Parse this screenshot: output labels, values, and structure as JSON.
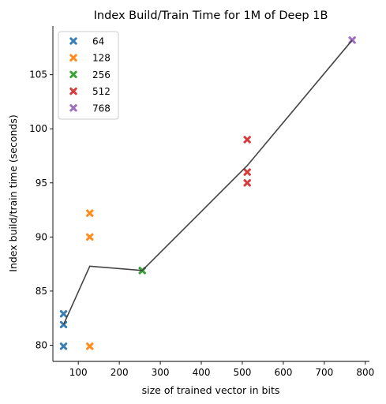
{
  "chart_data": {
    "type": "scatter",
    "title": "Index Build/Train Time for 1M of Deep 1B",
    "xlabel": "size of trained vector in bits",
    "ylabel": "Index build/train time (seconds)",
    "xlim": [
      38,
      810
    ],
    "ylim": [
      78.5,
      109.5
    ],
    "xticks": [
      100,
      200,
      300,
      400,
      500,
      600,
      700,
      800
    ],
    "yticks": [
      80,
      85,
      90,
      95,
      100,
      105
    ],
    "marker": "x",
    "legend_position": "top-left",
    "series": [
      {
        "name": "64",
        "color": "#3b7eb4",
        "points": [
          [
            64,
            79.9
          ],
          [
            64,
            81.9
          ],
          [
            64,
            82.9
          ]
        ]
      },
      {
        "name": "128",
        "color": "#ff8c1c",
        "points": [
          [
            128,
            79.9
          ],
          [
            128,
            90.0
          ],
          [
            128,
            92.2
          ]
        ]
      },
      {
        "name": "256",
        "color": "#3aa33a",
        "points": [
          [
            256,
            86.9
          ],
          [
            256,
            86.9
          ]
        ]
      },
      {
        "name": "512",
        "color": "#d43d3d",
        "points": [
          [
            512,
            95.0
          ],
          [
            512,
            96.0
          ],
          [
            512,
            99.0
          ]
        ]
      },
      {
        "name": "768",
        "color": "#9c6fc0",
        "points": [
          [
            768,
            108.2
          ]
        ]
      }
    ],
    "trend_line": {
      "color": "#444444",
      "x": [
        64,
        128,
        256,
        512,
        768
      ],
      "y": [
        81.9,
        87.3,
        86.9,
        96.6,
        108.2
      ]
    }
  }
}
